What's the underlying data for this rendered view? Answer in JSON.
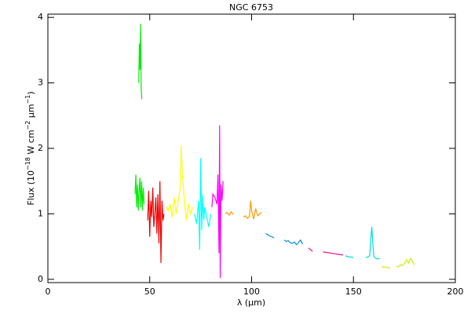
{
  "chart_data": {
    "type": "line",
    "title": "NGC 6753",
    "xlabel": "λ (μm)",
    "ylabel": [
      "Flux (10",
      "−18",
      " W cm",
      "−2",
      " μm",
      "−1",
      ")"
    ],
    "xlim": [
      0,
      200
    ],
    "xticks": [
      0,
      50,
      100,
      150,
      200
    ],
    "ylim": [
      -0.05,
      4.05
    ],
    "yticks": [
      0,
      1,
      2,
      3,
      4
    ],
    "grid": false,
    "series": [
      {
        "color": "#00ee00",
        "x": [
          42.8,
          43.2,
          43.6,
          44,
          44.4,
          44.8,
          45.2,
          45.6,
          46,
          46.4,
          46.8,
          47.2,
          null,
          44.6,
          44.9,
          45.2,
          45.5,
          45.8,
          46.1
        ],
        "values": [
          1.3,
          1.6,
          1.1,
          1.45,
          1.05,
          1.35,
          1.55,
          1.1,
          1.5,
          1.05,
          1.4,
          1.15,
          null,
          3.0,
          3.6,
          3.2,
          3.9,
          2.9,
          2.75
        ]
      },
      {
        "color": "#ee0000",
        "x": [
          49,
          49.5,
          50,
          50.5,
          51,
          51.5,
          52,
          52.5,
          53,
          53.5,
          54,
          54.5,
          55,
          55.5,
          56,
          56.5,
          57
        ],
        "values": [
          0.9,
          1.35,
          0.65,
          1.2,
          0.95,
          1.4,
          0.8,
          1.0,
          1.25,
          0.7,
          1.3,
          0.55,
          1.5,
          0.25,
          1.2,
          0.9,
          1.0
        ]
      },
      {
        "color": "#ffff00",
        "x": [
          58,
          59,
          60,
          61,
          62,
          63,
          64,
          65,
          65.5,
          66,
          66.5,
          67,
          68,
          69,
          70,
          71
        ],
        "values": [
          1.1,
          1.05,
          1.15,
          0.95,
          1.25,
          1.0,
          1.2,
          1.4,
          2.05,
          1.6,
          1.45,
          1.2,
          0.9,
          1.15,
          1.0,
          1.1
        ]
      },
      {
        "color": "#00ffff",
        "x": [
          72,
          73,
          74,
          74.5,
          75,
          75.5,
          76,
          76.5,
          77,
          78,
          79,
          80
        ],
        "values": [
          1.0,
          0.85,
          1.2,
          0.45,
          1.85,
          0.75,
          1.3,
          0.9,
          1.1,
          0.95,
          0.8,
          1.0
        ]
      },
      {
        "color": "#ff00ff",
        "x": [
          80.5,
          81,
          82,
          83,
          83.5,
          84,
          84.3,
          84.6,
          85,
          85.5,
          86
        ],
        "values": [
          1.1,
          1.3,
          1.25,
          1.15,
          1.6,
          0.4,
          2.35,
          0.02,
          1.45,
          1.2,
          1.5
        ]
      },
      {
        "color": "#ff9900",
        "x": [
          87,
          88,
          89,
          90,
          91,
          null,
          96,
          97,
          98,
          99,
          99.5,
          100,
          101,
          102,
          103,
          104,
          105
        ],
        "values": [
          1.0,
          1.02,
          0.98,
          1.03,
          0.99,
          null,
          0.95,
          0.97,
          0.93,
          0.96,
          1.2,
          1.05,
          0.92,
          1.08,
          0.97,
          1.0,
          1.02
        ]
      },
      {
        "color": "#0088dd",
        "x": [
          107,
          108,
          109,
          110,
          111,
          null,
          116,
          117,
          118,
          119,
          120,
          121,
          122,
          123,
          124,
          125
        ],
        "values": [
          0.7,
          0.68,
          0.66,
          0.65,
          0.63,
          null,
          0.6,
          0.58,
          0.59,
          0.56,
          0.55,
          0.57,
          0.53,
          0.56,
          0.6,
          0.54
        ]
      },
      {
        "color": "#ee1188",
        "x": [
          128,
          129,
          130,
          null,
          135,
          137,
          139,
          141,
          143,
          145
        ],
        "values": [
          0.48,
          0.45,
          0.43,
          null,
          0.42,
          0.41,
          0.4,
          0.39,
          0.38,
          0.37
        ]
      },
      {
        "color": "#00dddd",
        "x": [
          146,
          147,
          148,
          149,
          150,
          null,
          156,
          157,
          158,
          158.5,
          159,
          159.5,
          160,
          161,
          162,
          163
        ],
        "values": [
          0.36,
          0.35,
          0.34,
          0.34,
          0.33,
          null,
          0.33,
          0.34,
          0.36,
          0.6,
          0.8,
          0.55,
          0.35,
          0.32,
          0.31,
          0.32
        ]
      },
      {
        "color": "#ccee00",
        "x": [
          164,
          165,
          166,
          167,
          168,
          null,
          171,
          172,
          173,
          174,
          175,
          176,
          177,
          178,
          179,
          180
        ],
        "values": [
          0.2,
          0.18,
          0.19,
          0.17,
          0.18,
          null,
          0.2,
          0.19,
          0.22,
          0.21,
          0.24,
          0.3,
          0.25,
          0.32,
          0.27,
          0.22
        ]
      }
    ]
  }
}
